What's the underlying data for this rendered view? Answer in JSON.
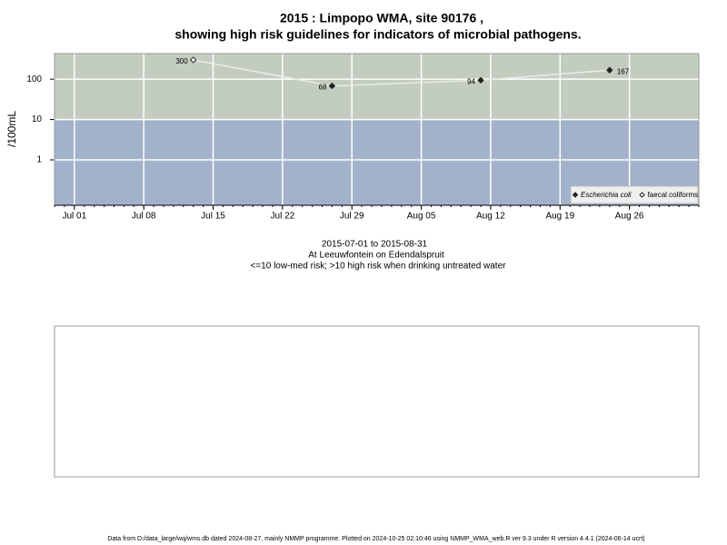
{
  "chart_data": {
    "type": "line",
    "title": "2015 : Limpopo WMA, site 90176 ,",
    "title_line2": "showing high risk guidelines for indicators of microbial pathogens.",
    "subtitle": [
      "2015-07-01 to 2015-08-31",
      "At Leeuwfontein on Edendalspruit",
      "<=10 low-med risk; >10 high risk when drinking untreated water"
    ],
    "y_label": "/100mL",
    "log_scale": true,
    "grid": true,
    "legend": "bottom-right",
    "risk_threshold": 10,
    "high_risk_color": "#c2cdc0",
    "low_risk_color": "#a2b2cb",
    "line_color": "#e8ece6",
    "series": [
      {
        "name": "Escherichia coli",
        "color": "#222222",
        "filled": true,
        "x": [
          "Jul 27",
          "Aug 11",
          "Aug 24"
        ],
        "values": [
          68,
          94,
          167
        ]
      },
      {
        "name": "faecal coliforms",
        "color": "#222222",
        "filled": false,
        "x": [
          "Jul 13"
        ],
        "values": [
          300
        ]
      }
    ],
    "xlim": [
      "Jun 29",
      "Sep 02"
    ],
    "xticks": [
      "Jul 01",
      "Jul 08",
      "Jul 15",
      "Jul 22",
      "Jul 29",
      "Aug 05",
      "Aug 12",
      "Aug 19",
      "Aug 26"
    ],
    "ylim": [
      0.075,
      430
    ],
    "yticks": [
      1,
      10,
      100
    ],
    "footer": "Data from D:/data_large/wq/wms.db dated 2024-08-27, mainly NMMP programme. Plotted on 2024-10-25 02:10:46 using NMMP_WMA_web.R ver 9.3 under R version 4.4.1 (2024-06-14 ucrt)"
  }
}
